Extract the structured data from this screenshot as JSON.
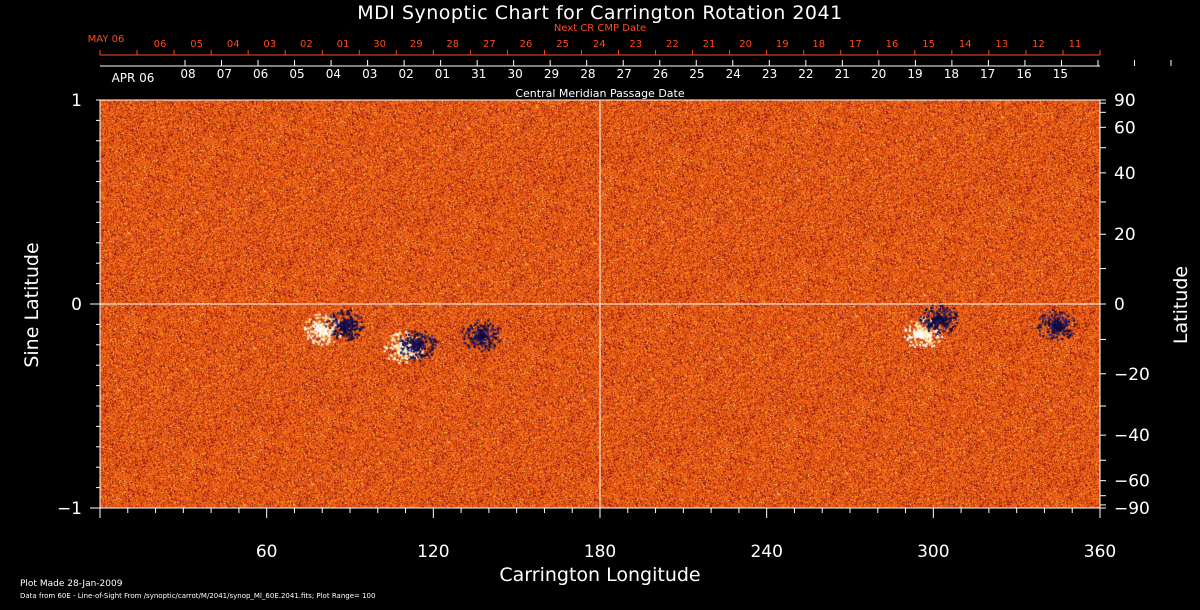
{
  "chart_data": {
    "type": "heatmap",
    "title": "MDI Synoptic Chart for Carrington Rotation 2041",
    "xlabel": "Carrington Longitude",
    "ylabel_left": "Sine Latitude",
    "ylabel_right": "Latitude",
    "xlim": [
      0,
      360
    ],
    "ylim": [
      -1,
      1
    ],
    "x_ticks": [
      60,
      120,
      180,
      240,
      300,
      360
    ],
    "y_ticks_left": [
      {
        "value": 1,
        "label": "1"
      },
      {
        "value": 0,
        "label": "0"
      },
      {
        "value": -1,
        "label": "−1"
      }
    ],
    "y_ticks_right": [
      {
        "lat": 90,
        "label": "90"
      },
      {
        "lat": 60,
        "label": "60"
      },
      {
        "lat": 40,
        "label": "40"
      },
      {
        "lat": 20,
        "label": "20"
      },
      {
        "lat": 0,
        "label": "0"
      },
      {
        "lat": -20,
        "label": "−20"
      },
      {
        "lat": -40,
        "label": "−40"
      },
      {
        "lat": -60,
        "label": "−60"
      },
      {
        "lat": -90,
        "label": "−90"
      }
    ],
    "top_axis_next_label": "Next CR CMP Date",
    "top_axis_next_first": "MAY 06",
    "top_axis_next_days": [
      "06",
      "05",
      "04",
      "03",
      "02",
      "01",
      "30",
      "29",
      "28",
      "27",
      "26",
      "25",
      "24",
      "23",
      "22",
      "21",
      "20",
      "19",
      "18",
      "17",
      "16",
      "15",
      "14",
      "13",
      "12",
      "11"
    ],
    "top_axis_cm_label": "Central Meridian Passage Date",
    "top_axis_cm_first": "APR 06",
    "top_axis_cm_days": [
      "08",
      "07",
      "06",
      "05",
      "04",
      "03",
      "02",
      "01",
      "31",
      "30",
      "29",
      "28",
      "27",
      "26",
      "25",
      "24",
      "23",
      "22",
      "21",
      "20",
      "19",
      "18",
      "17",
      "16",
      "15"
    ],
    "grid_lines": {
      "longitude": 180,
      "sine_latitude": 0
    },
    "active_regions": [
      {
        "lon": 80,
        "sinlat": -0.12,
        "polarity": "positive"
      },
      {
        "lon": 88,
        "sinlat": -0.1,
        "polarity": "negative"
      },
      {
        "lon": 109,
        "sinlat": -0.21,
        "polarity": "positive"
      },
      {
        "lon": 114,
        "sinlat": -0.2,
        "polarity": "negative"
      },
      {
        "lon": 137,
        "sinlat": -0.15,
        "polarity": "negative"
      },
      {
        "lon": 296,
        "sinlat": -0.14,
        "polarity": "positive"
      },
      {
        "lon": 302,
        "sinlat": -0.07,
        "polarity": "negative"
      },
      {
        "lon": 344,
        "sinlat": -0.1,
        "polarity": "negative"
      }
    ],
    "colors": {
      "background": "#000000",
      "field_base": "#d4380d",
      "positive": "#ffffff",
      "negative": "#0d0a3a",
      "annotation": "#ff4a1a"
    }
  },
  "footer": {
    "plot_made": "Plot Made 28-Jan-2009",
    "data_source": "Data from 60E - Line-of-Sight From /synoptic/carrot/M/2041/synop_Ml_60E.2041.fits; Plot Range= 100"
  }
}
